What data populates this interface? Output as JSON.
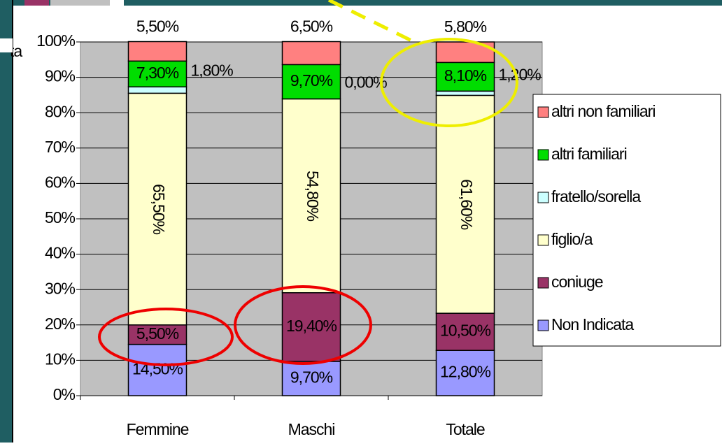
{
  "chart_data": {
    "type": "stacked_bar",
    "categories": [
      "Femmine",
      "Maschi",
      "Totale"
    ],
    "series": [
      {
        "name": "Non Indicata",
        "color": "#9999ff",
        "values": [
          14.5,
          9.7,
          12.8
        ],
        "value_labels": [
          "14,50%",
          "9,70%",
          "12,80%"
        ]
      },
      {
        "name": "coniuge",
        "color": "#993366",
        "values": [
          5.5,
          19.4,
          10.5
        ],
        "value_labels": [
          "5,50%",
          "19,40%",
          "10,50%"
        ]
      },
      {
        "name": "figlio/a",
        "color": "#ffffcc",
        "values": [
          65.5,
          54.8,
          61.6
        ],
        "value_labels": [
          "65,50%",
          "54,80%",
          "61,60%"
        ]
      },
      {
        "name": "fratello/sorella",
        "color": "#ccffff",
        "values": [
          1.8,
          0,
          1.2
        ],
        "value_labels": [
          "1,80%",
          "0,00%",
          "1,20%"
        ]
      },
      {
        "name": "altri familiari",
        "color": "#00dd00",
        "values": [
          7.3,
          9.7,
          8.1
        ],
        "value_labels": [
          "7,30%",
          "9,70%",
          "8,10%"
        ]
      },
      {
        "name": "altri non familiari",
        "color": "#ff8080",
        "values": [
          5.5,
          6.5,
          5.8
        ],
        "value_labels": [
          "5,50%",
          "6,50%",
          "5,80%"
        ]
      }
    ],
    "ylim": [
      0,
      100
    ],
    "yticks": [
      {
        "value": 0,
        "label": "0%"
      },
      {
        "value": 10,
        "label": "10%"
      },
      {
        "value": 20,
        "label": "20%"
      },
      {
        "value": 30,
        "label": "30%"
      },
      {
        "value": 40,
        "label": "40%"
      },
      {
        "value": 50,
        "label": "50%"
      },
      {
        "value": 60,
        "label": "60%"
      },
      {
        "value": 70,
        "label": "70%"
      },
      {
        "value": 80,
        "label": "80%"
      },
      {
        "value": 90,
        "label": "90%"
      },
      {
        "value": 100,
        "label": "100%"
      }
    ],
    "legend": "right",
    "annotations": [
      "ta"
    ]
  }
}
